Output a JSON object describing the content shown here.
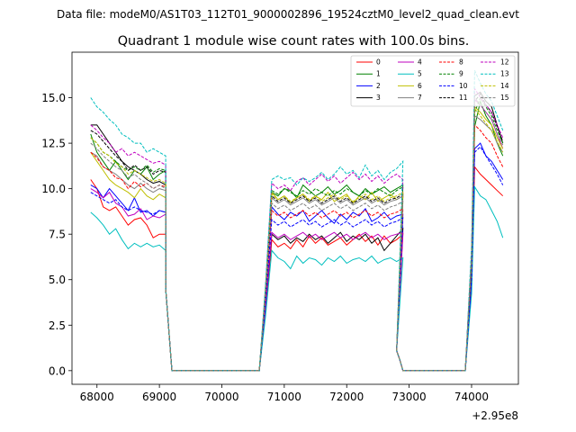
{
  "chart_data": {
    "type": "line",
    "suptitle": "Data file: modeM0/AS1T03_112T01_9000002896_19524cztM0_level2_quad_clean.evt",
    "title": "Quadrant 1 module wise count rates with 100.0s bins.",
    "xlabel": "",
    "ylabel": "",
    "x_offset_label": "+2.95e8",
    "xlim": [
      67600,
      74750
    ],
    "ylim": [
      -0.75,
      17.5
    ],
    "xticks": [
      68000,
      69000,
      70000,
      71000,
      72000,
      73000,
      74000
    ],
    "yticks": [
      0.0,
      2.5,
      5.0,
      7.5,
      10.0,
      12.5,
      15.0
    ],
    "xtick_labels": [
      "68000",
      "69000",
      "70000",
      "71000",
      "72000",
      "73000",
      "74000"
    ],
    "ytick_labels": [
      "0.0",
      "2.5",
      "5.0",
      "7.5",
      "10.0",
      "12.5",
      "15.0"
    ],
    "grid": false,
    "legend_position": "top-right",
    "legend_columns": 4,
    "colors": {
      "0": "#ff0000",
      "1": "#008000",
      "2": "#0000ff",
      "3": "#000000",
      "4": "#bf00bf",
      "5": "#00bfbf",
      "6": "#bfbf00",
      "7": "#808080",
      "8": "#ff0000",
      "9": "#008000",
      "10": "#0000ff",
      "11": "#000000",
      "12": "#bf00bf",
      "13": "#00bfbf",
      "14": "#bfbf00",
      "15": "#808080"
    },
    "series": [
      {
        "name": "0",
        "style": "solid",
        "seg1": [
          10.5,
          10.0,
          9.0,
          8.8,
          9.0,
          8.5,
          8.0,
          8.3,
          8.4,
          8.0,
          7.3,
          7.5,
          7.5
        ],
        "seg2": [
          7.2,
          6.8,
          7.0,
          6.7,
          7.2,
          6.8,
          7.4,
          7.0,
          7.3,
          6.9,
          7.1,
          7.3,
          6.9,
          7.2,
          7.5,
          7.1,
          7.4,
          6.9,
          7.4,
          7.0,
          7.2,
          7.5
        ],
        "seg3": [
          11.2,
          10.8,
          10.5,
          10.2,
          9.9,
          9.6
        ]
      },
      {
        "name": "1",
        "style": "solid",
        "seg1": [
          13.0,
          12.0,
          11.5,
          11.0,
          11.5,
          11.0,
          10.5,
          11.0,
          10.8,
          11.2,
          10.5,
          10.8,
          11.0
        ],
        "seg2": [
          9.8,
          9.6,
          10.0,
          9.9,
          9.5,
          10.2,
          9.9,
          9.6,
          9.8,
          10.1,
          9.7,
          9.9,
          10.2,
          9.8,
          9.6,
          10.0,
          9.7,
          9.9,
          10.1,
          9.8,
          10.0,
          10.2
        ],
        "seg3": [
          13.4,
          14.8,
          14.0,
          13.5,
          12.5,
          11.8
        ]
      },
      {
        "name": "2",
        "style": "solid",
        "seg1": [
          10.2,
          10.0,
          9.5,
          10.0,
          9.6,
          9.2,
          8.8,
          9.5,
          8.7,
          8.8,
          8.5,
          8.8,
          8.7
        ],
        "seg2": [
          9.0,
          8.6,
          8.3,
          8.7,
          8.5,
          8.8,
          8.2,
          8.5,
          8.8,
          8.4,
          8.1,
          8.6,
          8.3,
          8.7,
          8.5,
          8.9,
          8.2,
          8.4,
          8.7,
          8.3,
          8.5,
          8.6
        ],
        "seg3": [
          12.2,
          12.5,
          11.8,
          11.5,
          11.0,
          10.5
        ]
      },
      {
        "name": "3",
        "style": "solid",
        "seg1": [
          13.5,
          13.5,
          13.0,
          12.5,
          12.0,
          11.5,
          11.2,
          11.0,
          10.8,
          10.5,
          10.3,
          10.4,
          10.2
        ],
        "seg2": [
          7.5,
          7.2,
          7.4,
          7.0,
          7.3,
          7.1,
          7.5,
          7.2,
          7.4,
          7.0,
          7.3,
          7.6,
          7.1,
          7.4,
          7.2,
          7.5,
          7.0,
          7.3,
          6.6,
          7.0,
          7.4,
          7.8
        ],
        "seg3": [
          15.1,
          15.3,
          14.8,
          14.5,
          13.5,
          12.5
        ]
      },
      {
        "name": "4",
        "style": "solid",
        "seg1": [
          10.0,
          9.8,
          9.5,
          9.8,
          9.2,
          9.0,
          8.5,
          8.6,
          8.9,
          8.3,
          8.5,
          8.4,
          8.6
        ],
        "seg2": [
          7.6,
          7.3,
          7.5,
          7.2,
          7.4,
          7.6,
          7.3,
          7.5,
          7.2,
          7.4,
          7.6,
          7.3,
          7.5,
          7.2,
          7.4,
          7.6,
          7.3,
          7.5,
          7.2,
          7.4,
          7.5,
          7.6
        ],
        "seg3": [
          14.9,
          14.6,
          14.2,
          13.8,
          13.0,
          12.2
        ]
      },
      {
        "name": "5",
        "style": "solid",
        "seg1": [
          8.7,
          8.4,
          8.0,
          7.5,
          7.8,
          7.2,
          6.7,
          7.0,
          6.8,
          7.0,
          6.8,
          6.9,
          6.6
        ],
        "seg2": [
          6.6,
          6.2,
          6.0,
          5.6,
          6.3,
          5.9,
          6.2,
          6.1,
          5.8,
          6.2,
          6.0,
          6.3,
          5.9,
          6.1,
          6.2,
          6.0,
          6.3,
          5.9,
          6.1,
          6.2,
          6.0,
          6.2
        ],
        "seg3": [
          10.1,
          9.6,
          9.4,
          8.8,
          8.2,
          7.3
        ]
      },
      {
        "name": "6",
        "style": "solid",
        "seg1": [
          12.0,
          11.5,
          11.0,
          10.5,
          10.2,
          10.0,
          9.8,
          9.5,
          10.0,
          9.6,
          9.4,
          9.7,
          9.5
        ],
        "seg2": [
          9.8,
          9.4,
          9.6,
          9.2,
          9.5,
          9.7,
          9.3,
          9.6,
          9.4,
          9.8,
          9.3,
          9.5,
          9.7,
          9.2,
          9.6,
          9.4,
          9.8,
          9.3,
          9.5,
          9.7,
          9.4,
          9.6
        ],
        "seg3": [
          14.5,
          14.2,
          13.8,
          13.5,
          12.8,
          12.2
        ]
      },
      {
        "name": "7",
        "style": "solid",
        "seg1": [
          12.0,
          11.8,
          11.2,
          11.0,
          10.8,
          10.5,
          10.2,
          10.0,
          10.3,
          10.0,
          9.8,
          10.0,
          9.9
        ],
        "seg2": [
          9.5,
          9.2,
          9.4,
          9.1,
          9.3,
          9.5,
          9.2,
          9.4,
          9.1,
          9.3,
          9.5,
          9.2,
          9.4,
          9.1,
          9.3,
          9.5,
          9.2,
          9.4,
          9.1,
          9.3,
          9.4,
          9.6
        ],
        "seg3": [
          14.0,
          13.8,
          13.5,
          13.2,
          12.5,
          12.0
        ]
      },
      {
        "name": "8",
        "style": "dashed",
        "seg1": [
          12.0,
          11.7,
          11.2,
          11.0,
          10.6,
          10.5,
          10.0,
          10.4,
          10.1,
          10.3,
          10.0,
          10.2,
          10.1
        ],
        "seg2": [
          8.8,
          8.5,
          8.7,
          8.4,
          8.6,
          8.8,
          8.5,
          8.7,
          8.4,
          8.6,
          8.8,
          8.5,
          8.7,
          8.4,
          8.6,
          8.8,
          8.5,
          8.7,
          8.4,
          8.6,
          8.7,
          8.9
        ],
        "seg3": [
          13.5,
          13.2,
          12.8,
          12.5,
          11.8,
          11.2
        ]
      },
      {
        "name": "9",
        "style": "dashed",
        "seg1": [
          12.8,
          12.5,
          12.0,
          11.8,
          11.5,
          11.2,
          11.0,
          11.2,
          11.0,
          11.3,
          10.9,
          11.1,
          11.0
        ],
        "seg2": [
          9.9,
          9.7,
          10.0,
          9.8,
          9.6,
          9.9,
          9.7,
          10.0,
          9.8,
          9.6,
          9.9,
          9.7,
          10.0,
          9.8,
          9.6,
          9.9,
          9.7,
          10.0,
          9.8,
          9.6,
          9.9,
          10.1
        ],
        "seg3": [
          14.2,
          15.0,
          14.5,
          14.0,
          13.2,
          12.5
        ]
      },
      {
        "name": "10",
        "style": "dashed",
        "seg1": [
          9.8,
          9.6,
          9.4,
          9.2,
          9.4,
          9.0,
          8.8,
          9.0,
          8.8,
          8.7,
          8.6,
          8.8,
          8.7
        ],
        "seg2": [
          8.3,
          8.0,
          8.2,
          7.9,
          8.1,
          8.3,
          8.0,
          8.2,
          7.9,
          8.1,
          8.3,
          8.0,
          8.2,
          7.9,
          8.1,
          8.3,
          8.0,
          8.2,
          7.9,
          8.1,
          8.2,
          8.4
        ],
        "seg3": [
          12.0,
          12.3,
          11.8,
          11.3,
          10.8,
          10.2
        ]
      },
      {
        "name": "11",
        "style": "dashed",
        "seg1": [
          13.2,
          13.0,
          12.6,
          12.2,
          11.8,
          11.5,
          11.0,
          11.3,
          11.0,
          11.2,
          10.8,
          11.0,
          10.9
        ],
        "seg2": [
          9.6,
          9.3,
          9.5,
          9.2,
          9.4,
          9.6,
          9.3,
          9.5,
          9.2,
          9.4,
          9.6,
          9.3,
          9.5,
          9.2,
          9.4,
          9.6,
          9.3,
          9.5,
          9.2,
          9.4,
          9.5,
          9.7
        ],
        "seg3": [
          14.8,
          15.2,
          14.6,
          14.2,
          13.4,
          12.6
        ]
      },
      {
        "name": "12",
        "style": "dashed",
        "seg1": [
          13.5,
          13.2,
          12.8,
          12.5,
          12.0,
          12.2,
          11.8,
          12.0,
          11.8,
          11.6,
          11.4,
          11.5,
          11.3
        ],
        "seg2": [
          10.3,
          10.0,
          10.2,
          9.9,
          10.4,
          10.6,
          10.2,
          10.5,
          10.8,
          10.4,
          10.7,
          10.3,
          10.6,
          10.9,
          10.5,
          10.8,
          10.4,
          10.7,
          10.3,
          10.6,
          10.8,
          10.5
        ],
        "seg3": [
          15.5,
          15.0,
          14.6,
          14.2,
          13.5,
          12.8
        ]
      },
      {
        "name": "13",
        "style": "dashed",
        "seg1": [
          15.0,
          14.5,
          14.2,
          13.8,
          13.5,
          13.0,
          12.8,
          12.5,
          12.5,
          12.0,
          12.2,
          12.0,
          11.8
        ],
        "seg2": [
          10.5,
          10.7,
          10.5,
          10.6,
          10.2,
          10.6,
          10.4,
          10.6,
          10.9,
          10.5,
          10.8,
          11.2,
          10.8,
          11.0,
          10.6,
          11.3,
          10.7,
          11.0,
          10.5,
          10.9,
          11.1,
          11.5
        ],
        "seg3": [
          16.5,
          15.8,
          15.2,
          14.8,
          14.0,
          13.2
        ]
      },
      {
        "name": "14",
        "style": "dashed",
        "seg1": [
          12.8,
          12.5,
          12.0,
          11.8,
          11.4,
          11.2,
          10.8,
          11.0,
          10.8,
          10.6,
          10.4,
          10.5,
          10.3
        ],
        "seg2": [
          9.7,
          9.4,
          9.6,
          9.3,
          9.5,
          9.7,
          9.4,
          9.6,
          9.3,
          9.5,
          9.7,
          9.4,
          9.6,
          9.3,
          9.5,
          9.7,
          9.4,
          9.6,
          9.3,
          9.5,
          9.6,
          9.8
        ],
        "seg3": [
          14.4,
          14.0,
          13.6,
          13.2,
          12.6,
          12.0
        ]
      },
      {
        "name": "15",
        "style": "dashed",
        "seg1": [
          12.5,
          12.2,
          11.8,
          11.5,
          11.2,
          11.0,
          10.6,
          10.8,
          10.5,
          10.3,
          10.0,
          10.2,
          10.0
        ],
        "seg2": [
          9.2,
          8.9,
          9.1,
          8.8,
          9.0,
          9.2,
          8.9,
          9.1,
          8.8,
          9.0,
          9.2,
          8.9,
          9.1,
          8.8,
          9.0,
          9.2,
          8.9,
          9.1,
          8.8,
          9.0,
          9.1,
          9.3
        ],
        "seg3": [
          15.0,
          14.6,
          14.2,
          13.8,
          13.0,
          12.4
        ]
      }
    ]
  }
}
